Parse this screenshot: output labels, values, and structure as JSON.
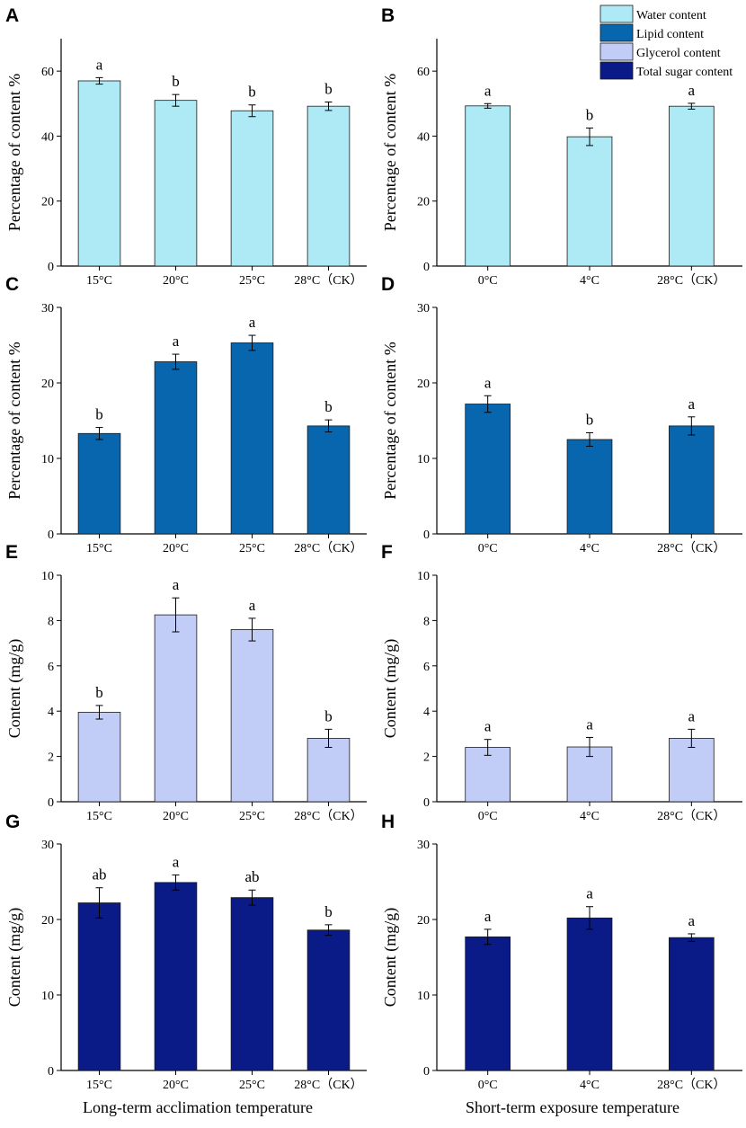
{
  "colors": {
    "water": "#AEEAF6",
    "lipid": "#0766AE",
    "glycerol": "#C2CDF7",
    "sugar": "#0A1A86",
    "axis": "#000000"
  },
  "legend": [
    {
      "label": "Water content",
      "color_key": "water"
    },
    {
      "label": "Lipid content",
      "color_key": "lipid"
    },
    {
      "label": "Glycerol content",
      "color_key": "glycerol"
    },
    {
      "label": "Total sugar content",
      "color_key": "sugar"
    }
  ],
  "x_titles": {
    "left": "Long-term acclimation temperature",
    "right": "Short-term exposure temperature"
  },
  "chart_data": [
    {
      "panel": "A",
      "type": "bar",
      "column": "left",
      "row": 0,
      "color_key": "water",
      "ylabel": "Percentage of content %",
      "ylim": [
        0,
        70
      ],
      "yticks": [
        0,
        20,
        40,
        60
      ],
      "categories": [
        "15°C",
        "20°C",
        "25°C",
        "28°C（CK）"
      ],
      "values": [
        57,
        51,
        47.8,
        49.2
      ],
      "errors": [
        1.0,
        1.8,
        1.8,
        1.3
      ],
      "letters": [
        "a",
        "b",
        "b",
        "b"
      ]
    },
    {
      "panel": "B",
      "type": "bar",
      "column": "right",
      "row": 0,
      "color_key": "water",
      "ylabel": "Percentage of content %",
      "ylim": [
        0,
        70
      ],
      "yticks": [
        0,
        20,
        40,
        60
      ],
      "categories": [
        "0°C",
        "4°C",
        "28°C（CK）"
      ],
      "values": [
        49.3,
        39.8,
        49.2
      ],
      "errors": [
        0.7,
        2.7,
        0.9
      ],
      "letters": [
        "a",
        "b",
        "a"
      ]
    },
    {
      "panel": "C",
      "type": "bar",
      "column": "left",
      "row": 1,
      "color_key": "lipid",
      "ylabel": "Percentage of content %",
      "ylim": [
        0,
        30
      ],
      "yticks": [
        0,
        10,
        20,
        30
      ],
      "categories": [
        "15°C",
        "20°C",
        "25°C",
        "28°C（CK）"
      ],
      "values": [
        13.3,
        22.8,
        25.3,
        14.3
      ],
      "errors": [
        0.8,
        1.0,
        1.0,
        0.8
      ],
      "letters": [
        "b",
        "a",
        "a",
        "b"
      ]
    },
    {
      "panel": "D",
      "type": "bar",
      "column": "right",
      "row": 1,
      "color_key": "lipid",
      "ylabel": "Percentage of content %",
      "ylim": [
        0,
        30
      ],
      "yticks": [
        0,
        10,
        20,
        30
      ],
      "categories": [
        "0°C",
        "4°C",
        "28°C（CK）"
      ],
      "values": [
        17.2,
        12.5,
        14.3
      ],
      "errors": [
        1.1,
        0.9,
        1.2
      ],
      "letters": [
        "a",
        "b",
        "a"
      ]
    },
    {
      "panel": "E",
      "type": "bar",
      "column": "left",
      "row": 2,
      "color_key": "glycerol",
      "ylabel": "Content (mg/g)",
      "ylim": [
        0,
        10
      ],
      "yticks": [
        0,
        2,
        4,
        6,
        8,
        10
      ],
      "categories": [
        "15°C",
        "20°C",
        "25°C",
        "28°C（CK）"
      ],
      "values": [
        3.95,
        8.25,
        7.6,
        2.8
      ],
      "errors": [
        0.3,
        0.75,
        0.5,
        0.4
      ],
      "letters": [
        "b",
        "a",
        "a",
        "b"
      ]
    },
    {
      "panel": "F",
      "type": "bar",
      "column": "right",
      "row": 2,
      "color_key": "glycerol",
      "ylabel": "Content (mg/g)",
      "ylim": [
        0,
        10
      ],
      "yticks": [
        0,
        2,
        4,
        6,
        8,
        10
      ],
      "categories": [
        "0°C",
        "4°C",
        "28°C（CK）"
      ],
      "values": [
        2.4,
        2.42,
        2.8
      ],
      "errors": [
        0.35,
        0.42,
        0.4
      ],
      "letters": [
        "a",
        "a",
        "a"
      ]
    },
    {
      "panel": "G",
      "type": "bar",
      "column": "left",
      "row": 3,
      "color_key": "sugar",
      "ylabel": "Content (mg/g)",
      "ylim": [
        0,
        30
      ],
      "yticks": [
        0,
        10,
        20,
        30
      ],
      "categories": [
        "15°C",
        "20°C",
        "25°C",
        "28°C（CK）"
      ],
      "values": [
        22.2,
        24.9,
        22.9,
        18.6
      ],
      "errors": [
        2.0,
        1.0,
        1.0,
        0.7
      ],
      "letters": [
        "ab",
        "a",
        "ab",
        "b"
      ]
    },
    {
      "panel": "H",
      "type": "bar",
      "column": "right",
      "row": 3,
      "color_key": "sugar",
      "ylabel": "Content (mg/g)",
      "ylim": [
        0,
        30
      ],
      "yticks": [
        0,
        10,
        20,
        30
      ],
      "categories": [
        "0°C",
        "4°C",
        "28°C（CK）"
      ],
      "values": [
        17.7,
        20.2,
        17.6
      ],
      "errors": [
        1.0,
        1.5,
        0.5
      ],
      "letters": [
        "a",
        "a",
        "a"
      ]
    }
  ]
}
